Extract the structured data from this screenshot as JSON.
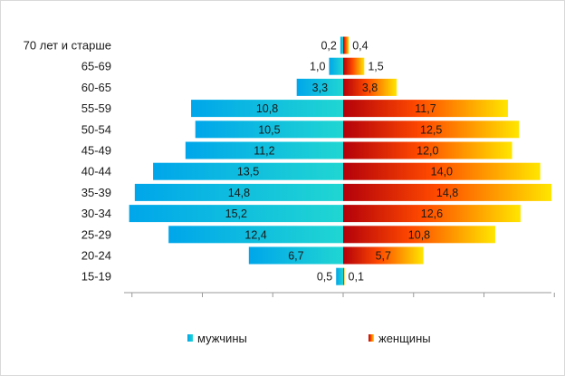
{
  "chart_data": {
    "type": "bar",
    "orientation": "horizontal-population-pyramid",
    "categories": [
      "70 лет и старше",
      "65-69",
      "60-65",
      "55-59",
      "50-54",
      "45-49",
      "40-44",
      "35-39",
      "30-34",
      "25-29",
      "20-24",
      "15-19"
    ],
    "series": [
      {
        "name": "мужчины",
        "side": "left",
        "values": [
          0.2,
          1.0,
          3.3,
          10.8,
          10.5,
          11.2,
          13.5,
          14.8,
          15.2,
          12.4,
          6.7,
          0.5
        ],
        "labels": [
          "0,2",
          "1,0",
          "3,3",
          "10,8",
          "10,5",
          "11,2",
          "13,5",
          "14,8",
          "15,2",
          "12,4",
          "6,7",
          "0,5"
        ],
        "gradient": [
          "#00a6ea",
          "#20d6d2"
        ]
      },
      {
        "name": "женщины",
        "side": "right",
        "values": [
          0.4,
          1.5,
          3.8,
          11.7,
          12.5,
          12.0,
          14.0,
          14.8,
          12.6,
          10.8,
          5.7,
          0.1
        ],
        "labels": [
          "0,4",
          "1,5",
          "3,8",
          "11,7",
          "12,5",
          "12,0",
          "14,0",
          "14,8",
          "12,6",
          "10,8",
          "5,7",
          "0,1"
        ],
        "gradient": [
          "#b3000a",
          "#ff4a00",
          "#ffe600"
        ]
      }
    ],
    "xlim": [
      -15,
      15
    ],
    "legend_position": "bottom"
  }
}
